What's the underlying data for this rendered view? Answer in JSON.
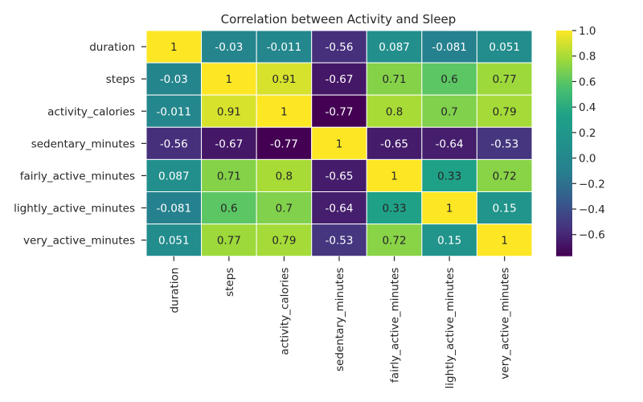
{
  "chart_data": {
    "type": "heatmap",
    "title": "Correlation between Activity and Sleep",
    "xlabel": "",
    "ylabel": "",
    "rows": [
      "duration",
      "steps",
      "activity_calories",
      "sedentary_minutes",
      "fairly_active_minutes",
      "lightly_active_minutes",
      "very_active_minutes"
    ],
    "columns": [
      "duration",
      "steps",
      "activity_calories",
      "sedentary_minutes",
      "fairly_active_minutes",
      "lightly_active_minutes",
      "very_active_minutes"
    ],
    "values": [
      [
        1,
        -0.03,
        -0.011,
        -0.56,
        0.087,
        -0.081,
        0.051
      ],
      [
        -0.03,
        1,
        0.91,
        -0.67,
        0.71,
        0.6,
        0.77
      ],
      [
        -0.011,
        0.91,
        1,
        -0.77,
        0.8,
        0.7,
        0.79
      ],
      [
        -0.56,
        -0.67,
        -0.77,
        1,
        -0.65,
        -0.64,
        -0.53
      ],
      [
        0.087,
        0.71,
        0.8,
        -0.65,
        1,
        0.33,
        0.72
      ],
      [
        -0.081,
        0.6,
        0.7,
        -0.64,
        0.33,
        1,
        0.15
      ],
      [
        0.051,
        0.77,
        0.79,
        -0.53,
        0.72,
        0.15,
        1
      ]
    ],
    "cell_labels": [
      [
        "1",
        "-0.03",
        "-0.011",
        "-0.56",
        "0.087",
        "-0.081",
        "0.051"
      ],
      [
        "-0.03",
        "1",
        "0.91",
        "-0.67",
        "0.71",
        "0.6",
        "0.77"
      ],
      [
        "-0.011",
        "0.91",
        "1",
        "-0.77",
        "0.8",
        "0.7",
        "0.79"
      ],
      [
        "-0.56",
        "-0.67",
        "-0.77",
        "1",
        "-0.65",
        "-0.64",
        "-0.53"
      ],
      [
        "0.087",
        "0.71",
        "0.8",
        "-0.65",
        "1",
        "0.33",
        "0.72"
      ],
      [
        "-0.081",
        "0.6",
        "0.7",
        "-0.64",
        "0.33",
        "1",
        "0.15"
      ],
      [
        "0.051",
        "0.77",
        "0.79",
        "-0.53",
        "0.72",
        "0.15",
        "1"
      ]
    ],
    "colormap": "viridis",
    "vmin": -0.77,
    "vmax": 1.0,
    "colorbar_ticks": [
      1.0,
      0.8,
      0.6,
      0.4,
      0.2,
      0.0,
      -0.2,
      -0.4,
      -0.6
    ],
    "colorbar_tick_labels": [
      "1.0",
      "0.8",
      "0.6",
      "0.4",
      "0.2",
      "0.0",
      "−0.2",
      "−0.4",
      "−0.6"
    ],
    "colorbar": "right",
    "grid": false
  }
}
